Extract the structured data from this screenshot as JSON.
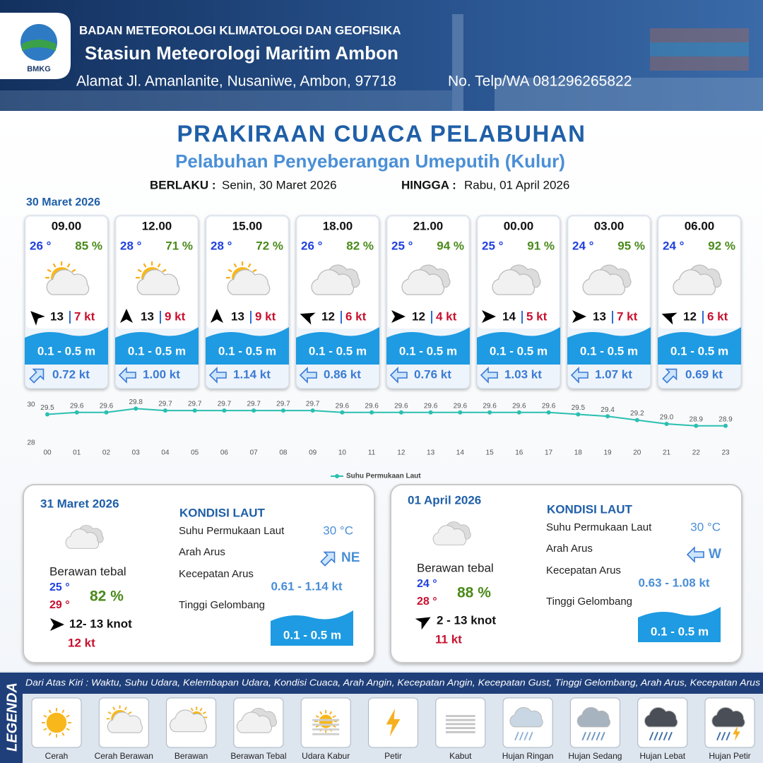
{
  "header": {
    "org": "BADAN METEOROLOGI KLIMATOLOGI DAN GEOFISIKA",
    "station": "Stasiun Meteorologi Maritim Ambon",
    "address": "Alamat Jl. Amanlanite, Nusaniwe, Ambon, 97718",
    "phone": "No. Telp/WA  081296265822",
    "logo_text": "BMKG"
  },
  "title": "PRAKIRAAN CUACA PELABUHAN",
  "subtitle": "Pelabuhan Penyeberangan Umeputih (Kulur)",
  "validity": {
    "from_label": "BERLAKU :",
    "from": "Senin, 30 Maret 2026",
    "to_label": "HINGGA :",
    "to": "Rabu, 01 April 2026"
  },
  "day1_date": "30 Maret 2026",
  "cards": [
    {
      "time": "09.00",
      "temp": "26 °",
      "humidity": "85 %",
      "wind": "13",
      "gust": "7 kt",
      "wave": "0.1 - 0.5 m",
      "current": "0.72 kt"
    },
    {
      "time": "12.00",
      "temp": "28 °",
      "humidity": "71 %",
      "wind": "13",
      "gust": "9 kt",
      "wave": "0.1 - 0.5 m",
      "current": "1.00 kt"
    },
    {
      "time": "15.00",
      "temp": "28 °",
      "humidity": "72 %",
      "wind": "13",
      "gust": "9 kt",
      "wave": "0.1 - 0.5 m",
      "current": "1.14 kt"
    },
    {
      "time": "18.00",
      "temp": "26 °",
      "humidity": "82 %",
      "wind": "12",
      "gust": "6 kt",
      "wave": "0.1 - 0.5 m",
      "current": "0.86 kt"
    },
    {
      "time": "21.00",
      "temp": "25 °",
      "humidity": "94 %",
      "wind": "12",
      "gust": "4 kt",
      "wave": "0.1 - 0.5 m",
      "current": "0.76 kt"
    },
    {
      "time": "00.00",
      "temp": "25 °",
      "humidity": "91 %",
      "wind": "14",
      "gust": "5 kt",
      "wave": "0.1 - 0.5 m",
      "current": "1.03 kt"
    },
    {
      "time": "03.00",
      "temp": "24 °",
      "humidity": "95 %",
      "wind": "13",
      "gust": "7 kt",
      "wave": "0.1 - 0.5 m",
      "current": "1.07 kt"
    },
    {
      "time": "06.00",
      "temp": "24 °",
      "humidity": "92 %",
      "wind": "12",
      "gust": "6 kt",
      "wave": "0.1 - 0.5 m",
      "current": "0.69 kt"
    }
  ],
  "chart_data": {
    "type": "line",
    "categories": [
      "00",
      "01",
      "02",
      "03",
      "04",
      "05",
      "06",
      "07",
      "08",
      "09",
      "10",
      "11",
      "12",
      "13",
      "14",
      "15",
      "16",
      "17",
      "18",
      "19",
      "20",
      "21",
      "22",
      "23"
    ],
    "series": [
      {
        "name": "Suhu Permukaan Laut",
        "color": "#2bbfb0",
        "values": [
          29.5,
          29.6,
          29.6,
          29.8,
          29.7,
          29.7,
          29.7,
          29.7,
          29.7,
          29.7,
          29.6,
          29.6,
          29.6,
          29.6,
          29.6,
          29.6,
          29.6,
          29.6,
          29.5,
          29.4,
          29.2,
          29.0,
          28.9,
          28.9
        ],
        "value_labels": [
          "29.5",
          "29.6",
          "29.6",
          "29.8",
          "29.7",
          "29.7",
          "29.7",
          "29.7",
          "29.7",
          "29.7",
          "29.6",
          "29.6",
          "29.6",
          "29.6",
          "29.6",
          "29.6",
          "29.6",
          "29.6",
          "29.5",
          "29.4",
          "29.2",
          "29.0",
          "28.9",
          "28.9"
        ]
      }
    ],
    "ylim": [
      28,
      30
    ],
    "yticks": [
      28,
      30
    ],
    "grid": false
  },
  "panels": [
    {
      "date": "31 Maret 2026",
      "condition": "Berawan tebal",
      "temp_min": "25 °",
      "temp_max": "29 °",
      "humidity": "82 %",
      "wind": "12- 13 knot",
      "gust": "12 kt",
      "sea_title": "KONDISI LAUT",
      "sst_label": "Suhu Permukaan Laut",
      "sst": "30 °C",
      "dir_label": "Arah Arus",
      "dir": "NE",
      "speed_label": "Kecepatan Arus",
      "speed": "0.61 - 1.14 kt",
      "wave_label": "Tinggi Gelombang",
      "wave": "0.1 - 0.5 m"
    },
    {
      "date": "01 April 2026",
      "condition": "Berawan tebal",
      "temp_min": "24 °",
      "temp_max": "28 °",
      "humidity": "88 %",
      "wind": "2 - 13 knot",
      "gust": "11 kt",
      "sea_title": "KONDISI LAUT",
      "sst_label": "Suhu Permukaan Laut",
      "sst": "30 °C",
      "dir_label": "Arah Arus",
      "dir": "W",
      "speed_label": "Kecepatan Arus",
      "speed": "0.63 - 1.08 kt",
      "wave_label": "Tinggi Gelombang",
      "wave": "0.1 - 0.5 m"
    }
  ],
  "legend": {
    "title": "LEGENDA",
    "description": "Dari Atas Kiri : Waktu, Suhu Udara, Kelembapan Udara, Kondisi Cuaca, Arah Angin, Kecepatan Angin, Kecepatan Gust, Tinggi Gelombang, Arah Arus, Kecepatan Arus",
    "items": [
      "Cerah",
      "Cerah Berawan",
      "Berawan",
      "Berawan Tebal",
      "Udara Kabur",
      "Petir",
      "Kabut",
      "Hujan Ringan",
      "Hujan Sedang",
      "Hujan Lebat",
      "Hujan Petir"
    ]
  }
}
